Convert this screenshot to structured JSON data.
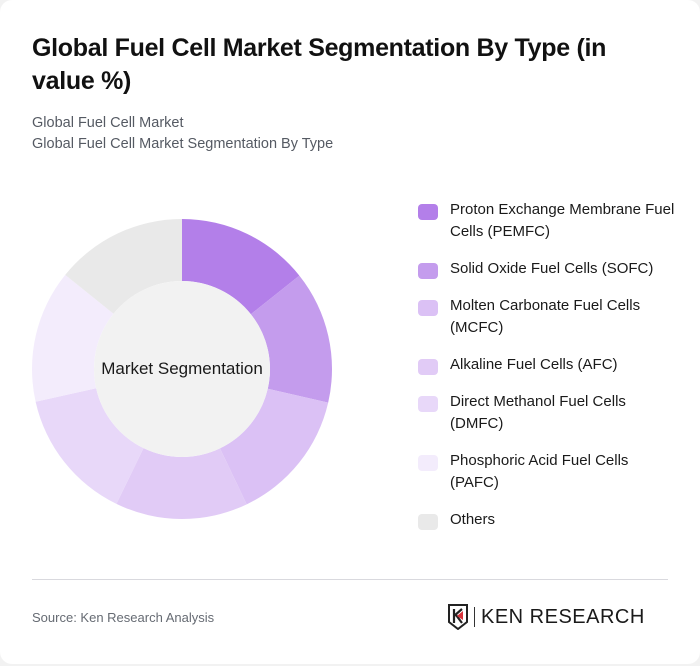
{
  "header": {
    "title": "Global Fuel Cell Market Segmentation By Type (in value %)",
    "subtitle_line1": "Global Fuel Cell Market",
    "subtitle_line2": "Global Fuel Cell Market Segmentation By Type"
  },
  "donut": {
    "center_label": "Market Segmentation"
  },
  "legend": [
    {
      "label": "Proton Exchange Membrane Fuel Cells (PEMFC)",
      "color": "#b37fe9"
    },
    {
      "label": "Solid Oxide Fuel Cells (SOFC)",
      "color": "#c49ced"
    },
    {
      "label": "Molten Carbonate Fuel Cells (MCFC)",
      "color": "#dbc1f5"
    },
    {
      "label": "Alkaline Fuel Cells (AFC)",
      "color": "#e1cbf6"
    },
    {
      "label": "Direct Methanol Fuel Cells (DMFC)",
      "color": "#e8d8f9"
    },
    {
      "label": "Phosphoric Acid Fuel Cells (PAFC)",
      "color": "#f3ecfc"
    },
    {
      "label": "Others",
      "color": "#e9e9e9"
    }
  ],
  "footer": {
    "source": "Source: Ken Research Analysis",
    "logo_text": "KEN RESEARCH"
  },
  "chart_data": {
    "type": "pie",
    "subtype": "donut",
    "title": "Global Fuel Cell Market Segmentation By Type (in value %)",
    "subtitle": "Global Fuel Cell Market / Global Fuel Cell Market Segmentation By Type",
    "center_label": "Market Segmentation",
    "categories": [
      "Proton Exchange Membrane Fuel Cells (PEMFC)",
      "Solid Oxide Fuel Cells (SOFC)",
      "Molten Carbonate Fuel Cells (MCFC)",
      "Alkaline Fuel Cells (AFC)",
      "Direct Methanol Fuel Cells (DMFC)",
      "Phosphoric Acid Fuel Cells (PAFC)",
      "Others"
    ],
    "values": [
      14.3,
      14.3,
      14.3,
      14.3,
      14.3,
      14.3,
      14.2
    ],
    "colors": [
      "#b37fe9",
      "#c49ced",
      "#dbc1f5",
      "#e1cbf6",
      "#e8d8f9",
      "#f3ecfc",
      "#e9e9e9"
    ],
    "legend_position": "right",
    "source": "Source: Ken Research Analysis"
  }
}
